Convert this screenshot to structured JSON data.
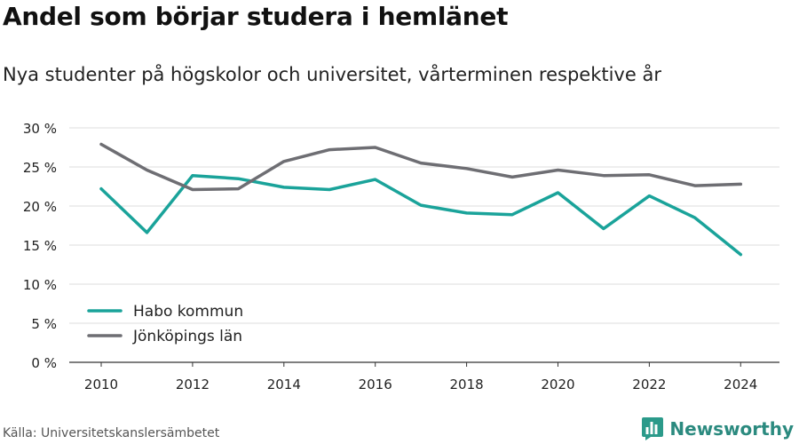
{
  "title": "Andel som börjar studera i hemlänet",
  "subtitle": "Nya studenter på högskolor och universitet, vårterminen respektive år",
  "source": "Källa: Universitetskanslersämbetet",
  "brand": {
    "name": "Newsworthy",
    "icon": "bar-chart-logo-icon",
    "color": "#2b9a8a"
  },
  "chart_data": {
    "type": "line",
    "x": [
      2010,
      2011,
      2012,
      2013,
      2014,
      2015,
      2016,
      2017,
      2018,
      2019,
      2020,
      2021,
      2022,
      2023,
      2024
    ],
    "x_tick_labels": [
      "2010",
      "2012",
      "2014",
      "2016",
      "2018",
      "2020",
      "2022",
      "2024"
    ],
    "y_tick_labels": [
      "0 %",
      "5 %",
      "10 %",
      "15 %",
      "20 %",
      "25 %",
      "30 %"
    ],
    "ylim": [
      0,
      30
    ],
    "grid": true,
    "legend_position": "bottom-left",
    "series": [
      {
        "name": "Habo kommun",
        "color": "#1aa39a",
        "values": [
          22.2,
          16.6,
          23.9,
          23.5,
          22.4,
          22.1,
          23.4,
          20.1,
          19.1,
          18.9,
          21.7,
          17.1,
          21.3,
          18.5,
          13.8
        ]
      },
      {
        "name": "Jönköpings län",
        "color": "#6e6e73",
        "values": [
          27.9,
          24.6,
          22.1,
          22.2,
          25.7,
          27.2,
          27.5,
          25.5,
          24.8,
          23.7,
          24.6,
          23.9,
          24.0,
          22.6,
          22.8
        ]
      }
    ]
  }
}
